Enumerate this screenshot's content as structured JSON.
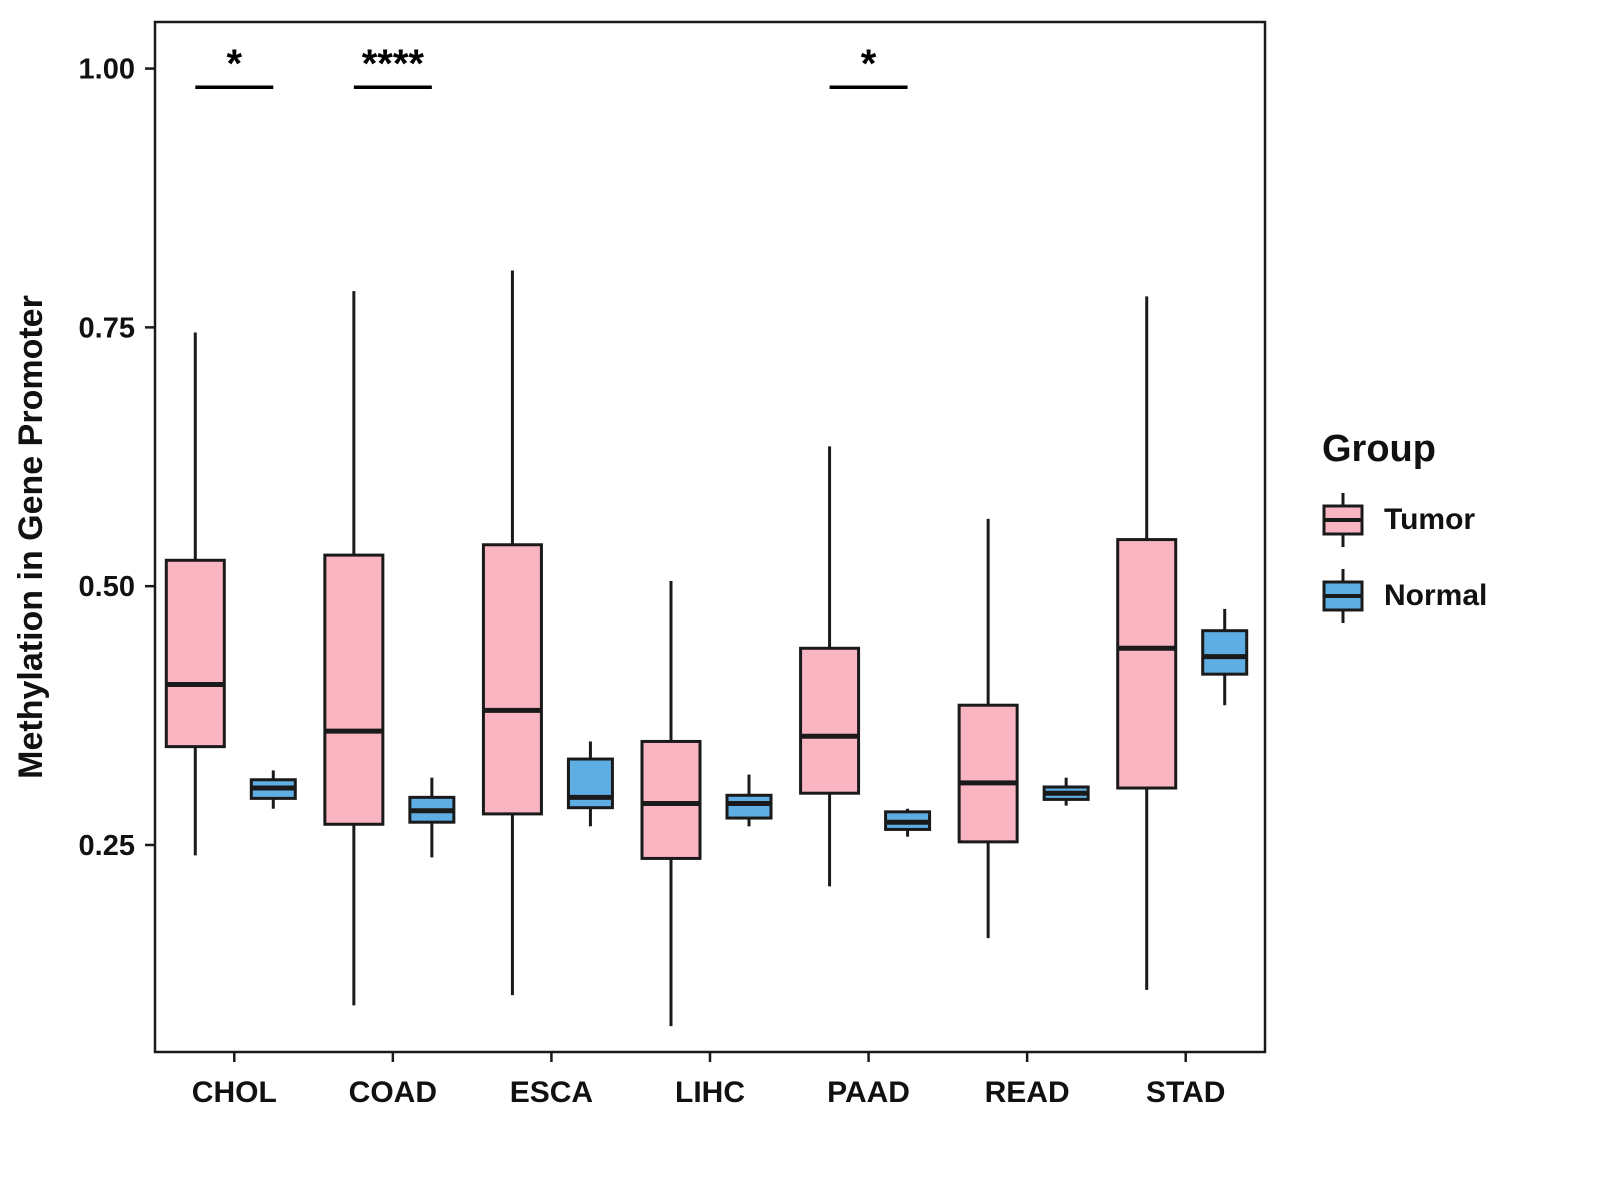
{
  "chart_data": {
    "type": "boxplot",
    "title": "",
    "xlabel": "",
    "ylabel": "Methylation in Gene Promoter",
    "categories": [
      "CHOL",
      "COAD",
      "ESCA",
      "LIHC",
      "PAAD",
      "READ",
      "STAD"
    ],
    "ylim": [
      0.05,
      1.045
    ],
    "yticks": [
      0.25,
      0.5,
      0.75,
      1.0
    ],
    "ytick_labels": [
      "0.25",
      "0.50",
      "0.75",
      "1.00"
    ],
    "grid": false,
    "legend_position": "right",
    "legend": {
      "title": "Group",
      "entries": [
        {
          "label": "Tumor",
          "color": "#F9B5C2"
        },
        {
          "label": "Normal",
          "color": "#5FAEE3"
        }
      ]
    },
    "series": [
      {
        "name": "Tumor",
        "color": "#F9B5C2",
        "boxes": [
          {
            "category": "CHOL",
            "min": 0.24,
            "q1": 0.345,
            "median": 0.405,
            "q3": 0.525,
            "max": 0.745
          },
          {
            "category": "COAD",
            "min": 0.095,
            "q1": 0.27,
            "median": 0.36,
            "q3": 0.53,
            "max": 0.785
          },
          {
            "category": "ESCA",
            "min": 0.105,
            "q1": 0.28,
            "median": 0.38,
            "q3": 0.54,
            "max": 0.805
          },
          {
            "category": "LIHC",
            "min": 0.075,
            "q1": 0.237,
            "median": 0.29,
            "q3": 0.35,
            "max": 0.505
          },
          {
            "category": "PAAD",
            "min": 0.21,
            "q1": 0.3,
            "median": 0.355,
            "q3": 0.44,
            "max": 0.635
          },
          {
            "category": "READ",
            "min": 0.16,
            "q1": 0.253,
            "median": 0.31,
            "q3": 0.385,
            "max": 0.565
          },
          {
            "category": "STAD",
            "min": 0.11,
            "q1": 0.305,
            "median": 0.44,
            "q3": 0.545,
            "max": 0.78
          }
        ]
      },
      {
        "name": "Normal",
        "color": "#5FAEE3",
        "boxes": [
          {
            "category": "CHOL",
            "min": 0.285,
            "q1": 0.295,
            "median": 0.305,
            "q3": 0.313,
            "max": 0.322
          },
          {
            "category": "COAD",
            "min": 0.238,
            "q1": 0.272,
            "median": 0.283,
            "q3": 0.296,
            "max": 0.315
          },
          {
            "category": "ESCA",
            "min": 0.268,
            "q1": 0.286,
            "median": 0.296,
            "q3": 0.333,
            "max": 0.35
          },
          {
            "category": "LIHC",
            "min": 0.268,
            "q1": 0.276,
            "median": 0.29,
            "q3": 0.298,
            "max": 0.318
          },
          {
            "category": "PAAD",
            "min": 0.258,
            "q1": 0.265,
            "median": 0.272,
            "q3": 0.282,
            "max": 0.285
          },
          {
            "category": "READ",
            "min": 0.288,
            "q1": 0.294,
            "median": 0.3,
            "q3": 0.306,
            "max": 0.315
          },
          {
            "category": "STAD",
            "min": 0.385,
            "q1": 0.415,
            "median": 0.432,
            "q3": 0.457,
            "max": 0.478
          }
        ]
      }
    ],
    "significance": [
      {
        "category": "CHOL",
        "label": "*",
        "line_y": 0.982
      },
      {
        "category": "COAD",
        "label": "****",
        "line_y": 0.982
      },
      {
        "category": "PAAD",
        "label": "*",
        "line_y": 0.982
      }
    ]
  }
}
